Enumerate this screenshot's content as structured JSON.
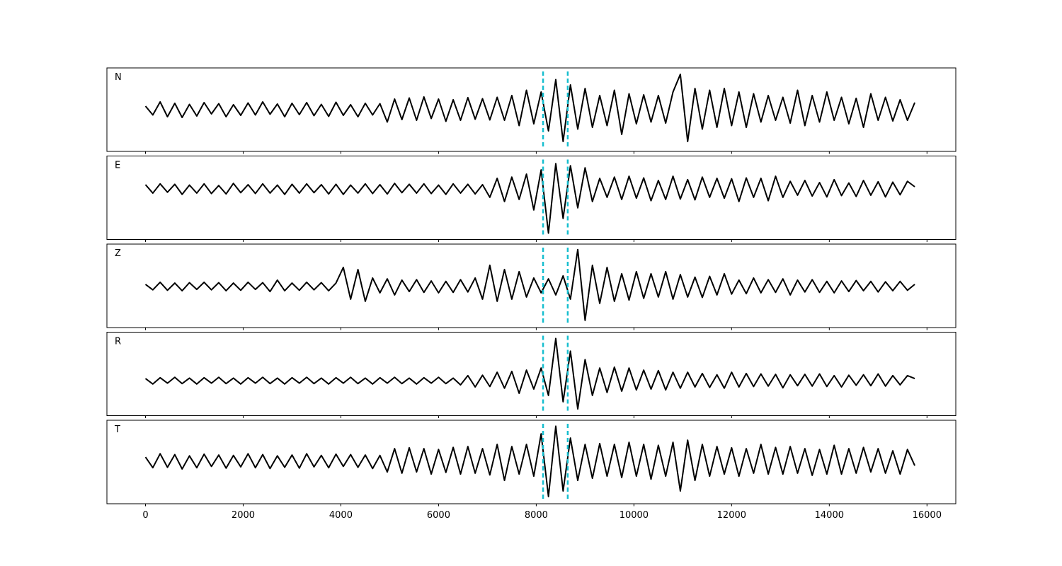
{
  "chart_data": {
    "type": "line",
    "x": [
      0,
      150,
      300,
      450,
      600,
      750,
      900,
      1050,
      1200,
      1350,
      1500,
      1650,
      1800,
      1950,
      2100,
      2250,
      2400,
      2550,
      2700,
      2850,
      3000,
      3150,
      3300,
      3450,
      3600,
      3750,
      3900,
      4050,
      4200,
      4350,
      4500,
      4650,
      4800,
      4950,
      5100,
      5250,
      5400,
      5550,
      5700,
      5850,
      6000,
      6150,
      6300,
      6450,
      6600,
      6750,
      6900,
      7050,
      7200,
      7350,
      7500,
      7650,
      7800,
      7950,
      8100,
      8250,
      8400,
      8550,
      8700,
      8850,
      9000,
      9150,
      9300,
      9450,
      9600,
      9750,
      9900,
      10050,
      10200,
      10350,
      10500,
      10650,
      10800,
      10950,
      11100,
      11250,
      11400,
      11550,
      11700,
      11850,
      12000,
      12150,
      12300,
      12450,
      12600,
      12750,
      12900,
      13050,
      13200,
      13350,
      13500,
      13650,
      13800,
      13950,
      14100,
      14250,
      14400,
      14550,
      14700,
      14850,
      15000,
      15150,
      15300,
      15450,
      15600,
      15750
    ],
    "xlim": [
      -790,
      16590
    ],
    "xticks": [
      0,
      2000,
      4000,
      6000,
      8000,
      10000,
      12000,
      14000,
      16000
    ],
    "markers": {
      "values": [
        8140,
        8645
      ],
      "color": "#17becf"
    },
    "panels": [
      {
        "label": "N",
        "color": "#000000",
        "ylim": [
          -1.18,
          1.18
        ],
        "values": [
          0.1,
          -0.15,
          0.22,
          -0.2,
          0.18,
          -0.22,
          0.15,
          -0.18,
          0.2,
          -0.12,
          0.17,
          -0.2,
          0.14,
          -0.16,
          0.19,
          -0.15,
          0.22,
          -0.13,
          0.16,
          -0.2,
          0.18,
          -0.14,
          0.2,
          -0.17,
          0.15,
          -0.19,
          0.21,
          -0.16,
          0.14,
          -0.2,
          0.18,
          -0.15,
          0.17,
          -0.35,
          0.3,
          -0.28,
          0.33,
          -0.3,
          0.36,
          -0.25,
          0.3,
          -0.33,
          0.28,
          -0.3,
          0.34,
          -0.27,
          0.31,
          -0.29,
          0.35,
          -0.3,
          0.4,
          -0.45,
          0.55,
          -0.4,
          0.5,
          -0.6,
          0.85,
          -0.9,
          0.7,
          -0.55,
          0.6,
          -0.5,
          0.4,
          -0.45,
          0.55,
          -0.7,
          0.45,
          -0.4,
          0.42,
          -0.35,
          0.4,
          -0.38,
          0.5,
          1.0,
          -0.9,
          0.6,
          -0.55,
          0.55,
          -0.5,
          0.6,
          -0.45,
          0.5,
          -0.5,
          0.45,
          -0.35,
          0.4,
          -0.3,
          0.35,
          -0.38,
          0.55,
          -0.45,
          0.4,
          -0.35,
          0.5,
          -0.3,
          0.35,
          -0.4,
          0.32,
          -0.5,
          0.45,
          -0.3,
          0.35,
          -0.32,
          0.28,
          -0.3,
          0.2
        ]
      },
      {
        "label": "E",
        "color": "#000000",
        "ylim": [
          -1.2,
          0.78
        ],
        "values": [
          0.1,
          -0.1,
          0.12,
          -0.08,
          0.11,
          -0.13,
          0.09,
          -0.1,
          0.12,
          -0.11,
          0.08,
          -0.12,
          0.13,
          -0.09,
          0.1,
          -0.11,
          0.12,
          -0.1,
          0.09,
          -0.13,
          0.11,
          -0.1,
          0.12,
          -0.09,
          0.1,
          -0.12,
          0.11,
          -0.13,
          0.09,
          -0.1,
          0.12,
          -0.11,
          0.1,
          -0.12,
          0.13,
          -0.09,
          0.11,
          -0.1,
          0.12,
          -0.11,
          0.09,
          -0.13,
          0.12,
          -0.1,
          0.11,
          -0.12,
          0.1,
          -0.2,
          0.25,
          -0.3,
          0.28,
          -0.25,
          0.35,
          -0.5,
          0.45,
          -1.05,
          0.6,
          -0.7,
          0.55,
          -0.45,
          0.5,
          -0.3,
          0.25,
          -0.2,
          0.28,
          -0.25,
          0.3,
          -0.22,
          0.26,
          -0.28,
          0.2,
          -0.25,
          0.3,
          -0.24,
          0.22,
          -0.26,
          0.28,
          -0.2,
          0.25,
          -0.22,
          0.24,
          -0.3,
          0.26,
          -0.2,
          0.25,
          -0.28,
          0.3,
          -0.2,
          0.18,
          -0.15,
          0.2,
          -0.17,
          0.15,
          -0.19,
          0.22,
          -0.16,
          0.14,
          -0.18,
          0.2,
          -0.15,
          0.17,
          -0.19,
          0.16,
          -0.14,
          0.18,
          0.05
        ]
      },
      {
        "label": "Z",
        "color": "#000000",
        "ylim": [
          -0.97,
          1.0
        ],
        "values": [
          0.05,
          -0.08,
          0.1,
          -0.09,
          0.08,
          -0.1,
          0.09,
          -0.07,
          0.1,
          -0.08,
          0.09,
          -0.1,
          0.08,
          -0.09,
          0.1,
          -0.07,
          0.09,
          -0.12,
          0.15,
          -0.1,
          0.08,
          -0.09,
          0.1,
          -0.08,
          0.09,
          -0.1,
          0.08,
          0.45,
          -0.3,
          0.4,
          -0.35,
          0.2,
          -0.15,
          0.18,
          -0.2,
          0.15,
          -0.12,
          0.16,
          -0.14,
          0.13,
          -0.15,
          0.12,
          -0.14,
          0.16,
          -0.13,
          0.2,
          -0.3,
          0.5,
          -0.35,
          0.4,
          -0.3,
          0.35,
          -0.25,
          0.2,
          -0.15,
          0.18,
          -0.2,
          0.25,
          -0.3,
          0.87,
          -0.8,
          0.5,
          -0.4,
          0.45,
          -0.35,
          0.3,
          -0.32,
          0.35,
          -0.28,
          0.3,
          -0.25,
          0.35,
          -0.3,
          0.28,
          -0.25,
          0.22,
          -0.26,
          0.24,
          -0.2,
          0.3,
          -0.18,
          0.15,
          -0.17,
          0.2,
          -0.15,
          0.16,
          -0.14,
          0.18,
          -0.2,
          0.15,
          -0.13,
          0.16,
          -0.14,
          0.12,
          -0.15,
          0.13,
          -0.12,
          0.14,
          -0.1,
          0.12,
          -0.13,
          0.11,
          -0.1,
          0.12,
          -0.09,
          0.05
        ]
      },
      {
        "label": "R",
        "color": "#000000",
        "ylim": [
          -0.83,
          1.15
        ],
        "values": [
          0.05,
          -0.08,
          0.07,
          -0.06,
          0.08,
          -0.07,
          0.06,
          -0.08,
          0.07,
          -0.06,
          0.08,
          -0.07,
          0.06,
          -0.08,
          0.07,
          -0.06,
          0.08,
          -0.07,
          0.06,
          -0.08,
          0.07,
          -0.06,
          0.08,
          -0.07,
          0.06,
          -0.08,
          0.07,
          -0.06,
          0.08,
          -0.07,
          0.06,
          -0.08,
          0.07,
          -0.06,
          0.08,
          -0.07,
          0.06,
          -0.08,
          0.07,
          -0.06,
          0.08,
          -0.07,
          0.06,
          -0.1,
          0.12,
          -0.15,
          0.13,
          -0.14,
          0.2,
          -0.18,
          0.22,
          -0.3,
          0.25,
          -0.2,
          0.3,
          -0.35,
          1.0,
          -0.5,
          0.7,
          -0.67,
          0.5,
          -0.35,
          0.3,
          -0.28,
          0.32,
          -0.25,
          0.3,
          -0.22,
          0.25,
          -0.2,
          0.24,
          -0.22,
          0.2,
          -0.18,
          0.2,
          -0.15,
          0.17,
          -0.16,
          0.14,
          -0.18,
          0.2,
          -0.15,
          0.17,
          -0.14,
          0.16,
          -0.13,
          0.15,
          -0.17,
          0.14,
          -0.12,
          0.15,
          -0.13,
          0.16,
          -0.14,
          0.12,
          -0.15,
          0.13,
          -0.11,
          0.14,
          -0.12,
          0.16,
          -0.13,
          0.12,
          -0.1,
          0.12,
          0.05
        ]
      },
      {
        "label": "T",
        "color": "#000000",
        "ylim": [
          -1.0,
          0.97
        ],
        "values": [
          0.1,
          -0.15,
          0.18,
          -0.14,
          0.16,
          -0.18,
          0.13,
          -0.15,
          0.17,
          -0.12,
          0.15,
          -0.16,
          0.14,
          -0.13,
          0.18,
          -0.15,
          0.16,
          -0.17,
          0.13,
          -0.14,
          0.15,
          -0.16,
          0.18,
          -0.13,
          0.14,
          -0.15,
          0.17,
          -0.12,
          0.16,
          -0.14,
          0.15,
          -0.17,
          0.14,
          -0.25,
          0.3,
          -0.28,
          0.32,
          -0.25,
          0.3,
          -0.3,
          0.28,
          -0.26,
          0.33,
          -0.3,
          0.35,
          -0.28,
          0.3,
          -0.32,
          0.4,
          -0.45,
          0.35,
          -0.3,
          0.4,
          -0.35,
          0.65,
          -0.83,
          0.83,
          -0.7,
          0.55,
          -0.45,
          0.4,
          -0.4,
          0.42,
          -0.35,
          0.4,
          -0.38,
          0.45,
          -0.35,
          0.4,
          -0.42,
          0.38,
          -0.35,
          0.45,
          -0.7,
          0.5,
          -0.45,
          0.4,
          -0.35,
          0.35,
          -0.3,
          0.32,
          -0.35,
          0.3,
          -0.28,
          0.4,
          -0.3,
          0.33,
          -0.3,
          0.35,
          -0.28,
          0.3,
          -0.33,
          0.28,
          -0.3,
          0.38,
          -0.3,
          0.3,
          -0.28,
          0.33,
          -0.25,
          0.3,
          -0.28,
          0.25,
          -0.3,
          0.28,
          -0.1
        ]
      }
    ]
  }
}
